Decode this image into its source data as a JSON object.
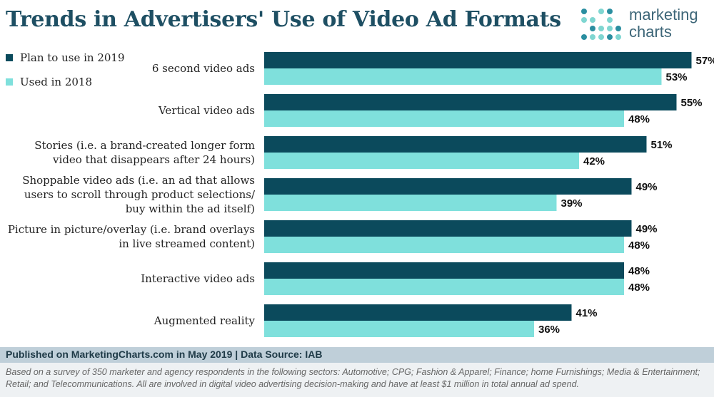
{
  "header": {
    "title": "Trends in Advertisers' Use of Video Ad Formats",
    "logo_line1": "marketing",
    "logo_line2": "charts"
  },
  "footer": {
    "published": "Published on MarketingCharts.com in May 2019 | Data Source: IAB",
    "note": "Based on a survey of 350 marketer and agency respondents in the following sectors: Automotive; CPG; Fashion & Apparel; Finance; home Furnishings; Media & Entertainment; Retail; and Telecommunications. All are involved in digital video advertising decision-making and have at least $1 million in total annual ad spend."
  },
  "colors": {
    "series_2019": "#0b4a5c",
    "series_2018": "#7fe0dc",
    "logo_dot_light": "#7fd6d1",
    "logo_dot_dark": "#2a8ea0"
  },
  "chart_data": {
    "type": "bar",
    "orientation": "horizontal",
    "categories": [
      [
        "6 second video ads"
      ],
      [
        "Vertical video ads"
      ],
      [
        "Stories (i.e. a brand-created longer form",
        "video that disappears after 24 hours)"
      ],
      [
        "Shoppable video ads (i.e. an ad that allows",
        "users to scroll through product selections/",
        "buy within the ad itself)"
      ],
      [
        "Picture in picture/overlay (i.e. brand overlays",
        "in live streamed content)"
      ],
      [
        "Interactive video ads"
      ],
      [
        "Augmented reality"
      ]
    ],
    "series": [
      {
        "name": "Plan to use in 2019",
        "values": [
          57,
          55,
          51,
          49,
          49,
          48,
          41
        ]
      },
      {
        "name": "Used in 2018",
        "values": [
          53,
          48,
          42,
          39,
          48,
          48,
          36
        ]
      }
    ],
    "value_suffix": "%",
    "xlim": [
      0,
      60
    ],
    "grid": false,
    "legend": "top-left"
  }
}
